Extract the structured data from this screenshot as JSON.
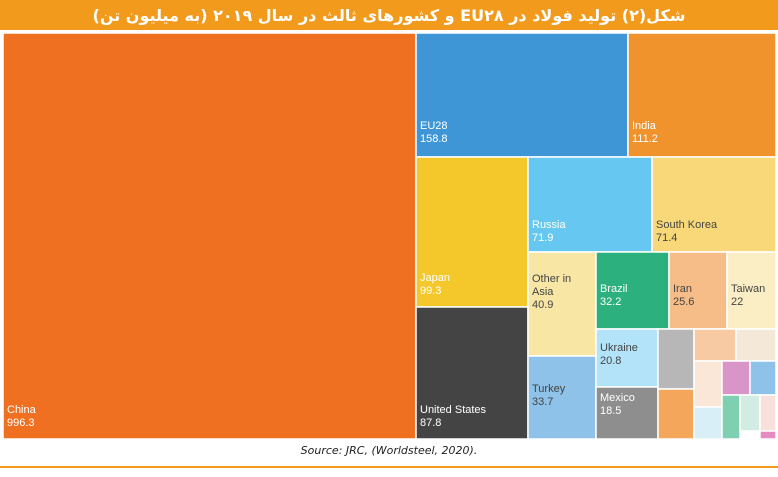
{
  "title": "شکل(۲) تولید فولاد در EU۲۸ و کشورهای ثالث در سال ۲۰۱۹ (به میلیون تن)",
  "source": "Source: JRC, (Worldsteel, 2020).",
  "colors": {
    "accent": "#f29a1c"
  },
  "chart_data": {
    "type": "treemap",
    "title": "شکل(۲) تولید فولاد در EU۲۸ و کشورهای ثالث در سال ۲۰۱۹ (به میلیون تن)",
    "unit": "",
    "labeled": [
      {
        "name": "China",
        "value": 996.3,
        "color": "#f07022"
      },
      {
        "name": "EU28",
        "value": 158.8,
        "color": "#3f96d6"
      },
      {
        "name": "India",
        "value": 111.2,
        "color": "#f0932c"
      },
      {
        "name": "Japan",
        "value": 99.3,
        "color": "#f4c82a"
      },
      {
        "name": "United States",
        "value": 87.8,
        "color": "#444444"
      },
      {
        "name": "Russia",
        "value": 71.9,
        "color": "#66c8f0"
      },
      {
        "name": "South Korea",
        "value": 71.4,
        "color": "#f8d878"
      },
      {
        "name": "Other in Asia",
        "value": 40.9,
        "color": "#f7e6a4"
      },
      {
        "name": "Turkey",
        "value": 33.7,
        "color": "#8ec2e8"
      },
      {
        "name": "Brazil",
        "value": 32.2,
        "color": "#2cb07e"
      },
      {
        "name": "Iran",
        "value": 25.6,
        "color": "#f6bd88"
      },
      {
        "name": "Taiwan",
        "value": 22,
        "color": "#fbeec4"
      },
      {
        "name": "Ukraine",
        "value": 20.8,
        "color": "#b2e3f8"
      },
      {
        "name": "Mexico",
        "value": 18.5,
        "color": "#8e8e8e"
      }
    ],
    "unlabeled_colors": [
      "#b7b7b7",
      "#f4a65a",
      "#f8caa4",
      "#fbe7d8",
      "#d8eff8",
      "#f4e8d8",
      "#d995c8",
      "#8ec2e8",
      "#7fd0b0",
      "#d2ece4",
      "#f8e0dc",
      "#e48cc0"
    ]
  }
}
